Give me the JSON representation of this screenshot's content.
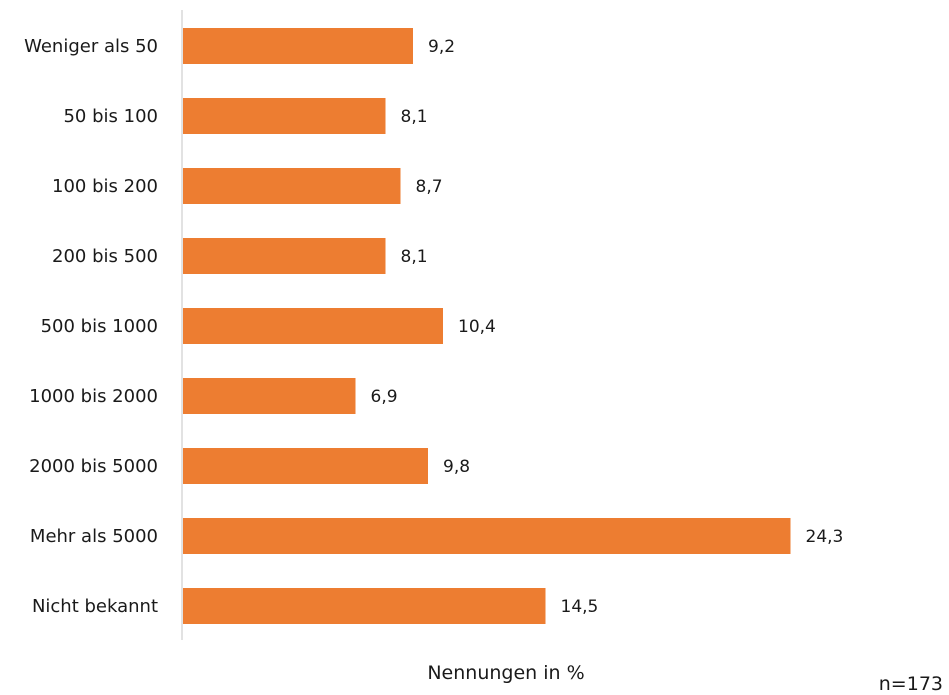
{
  "colors": {
    "bar": "#ED7D31",
    "axis": "#d9d9d9",
    "text": "#1a1a1a"
  },
  "chart_data": {
    "type": "bar",
    "orientation": "horizontal",
    "categories": [
      "Weniger als 50",
      "50 bis 100",
      "100 bis 200",
      "200 bis 500",
      "500 bis 1000",
      "1000 bis 2000",
      "2000 bis 5000",
      "Mehr als 5000",
      "Nicht bekannt"
    ],
    "values": [
      9.2,
      8.1,
      8.7,
      8.1,
      10.4,
      6.9,
      9.8,
      24.3,
      14.5
    ],
    "value_labels": [
      "9,2",
      "8,1",
      "8,7",
      "8,1",
      "10,4",
      "6,9",
      "9,8",
      "24,3",
      "14,5"
    ],
    "title": "",
    "xlabel": "Nennungen in %",
    "ylabel": "",
    "xlim": [
      0,
      28
    ],
    "grid": false,
    "legend": "none",
    "note": "n=173"
  }
}
